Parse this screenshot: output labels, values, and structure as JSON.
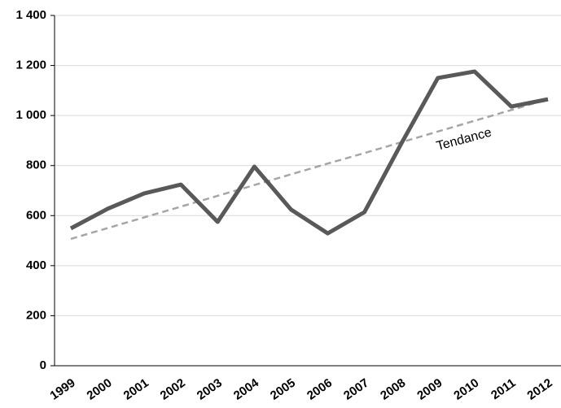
{
  "chart_data": {
    "type": "line",
    "categories": [
      "1999",
      "2000",
      "2001",
      "2002",
      "2003",
      "2004",
      "2005",
      "2006",
      "2007",
      "2008",
      "2009",
      "2010",
      "2011",
      "2012"
    ],
    "series": [
      {
        "color": "#595959",
        "values": [
          549,
          627,
          689,
          724,
          575,
          796,
          624,
          529,
          614,
          887,
          1150,
          1176,
          1036,
          1065
        ]
      },
      {
        "name": "Tendance",
        "color": "#a6a6a6",
        "dashed": true,
        "values": [
          507,
          550,
          593,
          636,
          679,
          722,
          765,
          808,
          850,
          893,
          936,
          979,
          1022,
          1065
        ]
      }
    ],
    "ylim": [
      0,
      1400
    ],
    "yticks": [
      0,
      200,
      400,
      600,
      800,
      {
        "value": 1000,
        "label": "1 000"
      },
      {
        "value": 1200,
        "label": "1 200"
      },
      {
        "value": 1400,
        "label": "1 400"
      }
    ],
    "grid": true
  }
}
